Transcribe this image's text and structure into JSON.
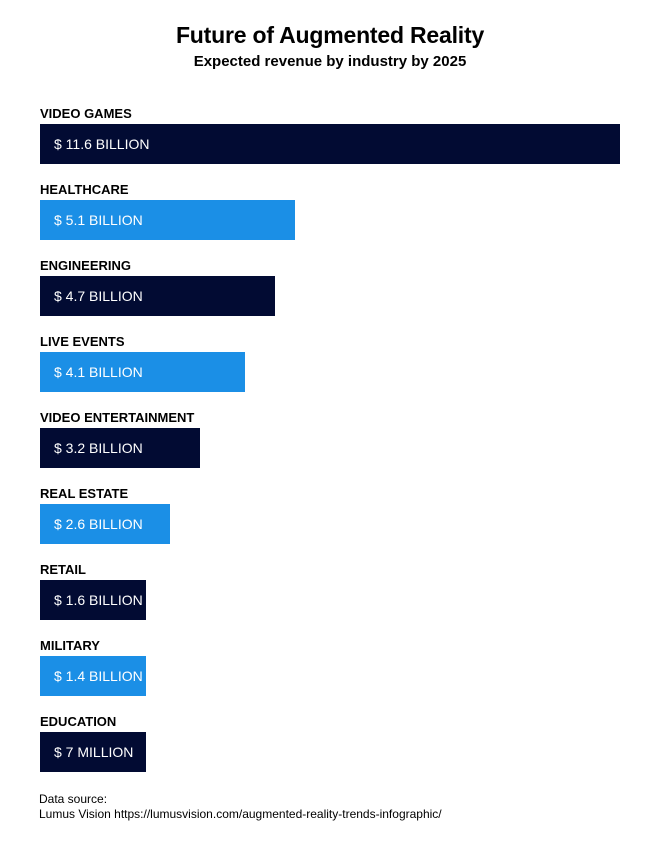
{
  "chart_data": {
    "type": "bar",
    "orientation": "horizontal",
    "title": "Future of Augmented Reality",
    "subtitle": "Expected revenue by industry by 2025",
    "unit": "billion USD",
    "categories": [
      "VIDEO GAMES",
      "HEALTHCARE",
      "ENGINEERING",
      "LIVE EVENTS",
      "VIDEO ENTERTAINMENT",
      "REAL ESTATE",
      "RETAIL",
      "MILITARY",
      "EDUCATION"
    ],
    "values": [
      11.6,
      5.1,
      4.7,
      4.1,
      3.2,
      2.6,
      1.6,
      1.4,
      0.007
    ],
    "data_labels": [
      "$ 11.6 BILLION",
      "$ 5.1 BILLION",
      "$ 4.7 BILLION",
      "$ 4.1 BILLION",
      "$ 3.2 BILLION",
      "$ 2.6 BILLION",
      "$ 1.6 BILLION",
      "$ 1.4 BILLION",
      "$ 7 MILLION"
    ],
    "colors": [
      "#020b33",
      "#1b8fe6"
    ],
    "grid": false,
    "legend": "none"
  },
  "source": {
    "label": "Data source:",
    "text": "Lumus Vision https://lumusvision.com/augmented-reality-trends-infographic/"
  }
}
